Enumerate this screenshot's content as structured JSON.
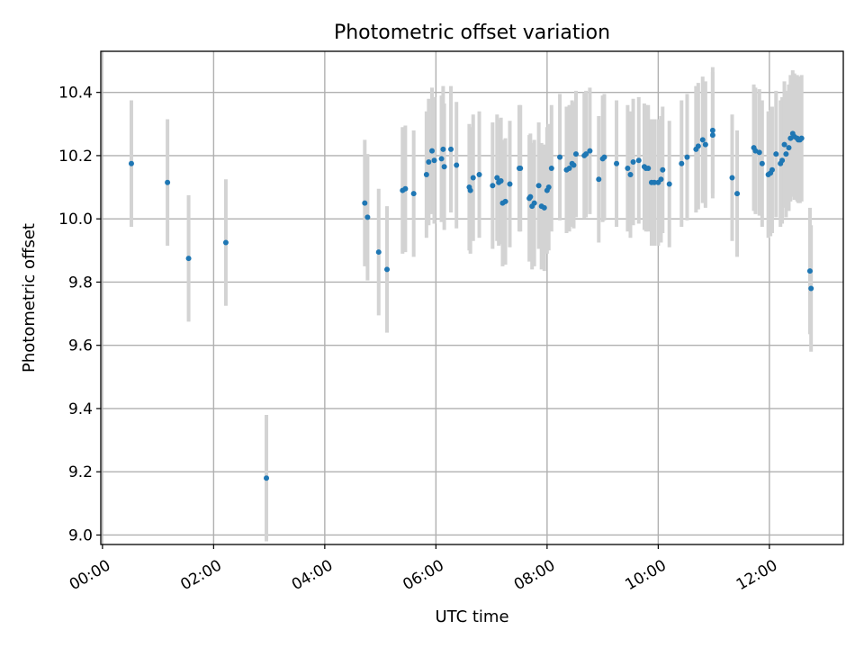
{
  "chart_data": {
    "type": "scatter",
    "title": "Photometric offset variation",
    "xlabel": "UTC time",
    "ylabel": "Photometric offset",
    "xlim": [
      -0.03,
      13.33
    ],
    "ylim": [
      8.97,
      10.53
    ],
    "grid": true,
    "x_ticks": [
      {
        "value": 0,
        "label": "00:00"
      },
      {
        "value": 2,
        "label": "02:00"
      },
      {
        "value": 4,
        "label": "04:00"
      },
      {
        "value": 6,
        "label": "06:00"
      },
      {
        "value": 8,
        "label": "08:00"
      },
      {
        "value": 10,
        "label": "10:00"
      },
      {
        "value": 12,
        "label": "12:00"
      }
    ],
    "y_ticks": [
      {
        "value": 9.0,
        "label": "9.0"
      },
      {
        "value": 9.2,
        "label": "9.2"
      },
      {
        "value": 9.4,
        "label": "9.4"
      },
      {
        "value": 9.6,
        "label": "9.6"
      },
      {
        "value": 9.8,
        "label": "9.8"
      },
      {
        "value": 10.0,
        "label": "10.0"
      },
      {
        "value": 10.2,
        "label": "10.2"
      },
      {
        "value": 10.4,
        "label": "10.4"
      }
    ],
    "colors": {
      "point": "#1f77b4",
      "errorbar": "#d3d3d3"
    },
    "error": 0.2,
    "series": [
      {
        "name": "offset",
        "t": [
          0.52,
          1.17,
          1.55,
          2.22,
          2.95,
          4.72,
          4.77,
          4.97,
          5.12,
          5.4,
          5.45,
          5.6,
          5.83,
          5.87,
          5.93,
          5.97,
          6.1,
          6.13,
          6.15,
          6.27,
          6.37,
          6.6,
          6.62,
          6.67,
          6.78,
          7.02,
          7.1,
          7.13,
          7.17,
          7.2,
          7.25,
          7.33,
          7.5,
          7.52,
          7.68,
          7.7,
          7.73,
          7.77,
          7.85,
          7.9,
          7.95,
          8.0,
          8.03,
          8.08,
          8.23,
          8.35,
          8.4,
          8.45,
          8.48,
          8.52,
          8.67,
          8.7,
          8.77,
          8.93,
          9.0,
          9.03,
          9.25,
          9.45,
          9.5,
          9.55,
          9.65,
          9.75,
          9.78,
          9.82,
          9.88,
          9.93,
          10.0,
          10.05,
          10.08,
          10.2,
          10.42,
          10.52,
          10.68,
          10.72,
          10.8,
          10.85,
          10.98,
          10.98,
          11.33,
          11.42,
          11.72,
          11.75,
          11.82,
          11.87,
          11.98,
          12.02,
          12.05,
          12.12,
          12.2,
          12.23,
          12.27,
          12.3,
          12.35,
          12.38,
          12.42,
          12.45,
          12.5,
          12.52,
          12.55,
          12.58,
          12.73,
          12.75
        ],
        "offset": [
          10.175,
          10.115,
          9.875,
          9.925,
          9.18,
          10.05,
          10.005,
          9.895,
          9.84,
          10.09,
          10.095,
          10.08,
          10.14,
          10.18,
          10.215,
          10.185,
          10.19,
          10.22,
          10.165,
          10.22,
          10.17,
          10.1,
          10.09,
          10.13,
          10.14,
          10.105,
          10.13,
          10.115,
          10.12,
          10.05,
          10.055,
          10.11,
          10.16,
          10.16,
          10.065,
          10.07,
          10.04,
          10.05,
          10.105,
          10.04,
          10.035,
          10.09,
          10.1,
          10.16,
          10.195,
          10.155,
          10.16,
          10.175,
          10.17,
          10.205,
          10.2,
          10.205,
          10.215,
          10.125,
          10.19,
          10.195,
          10.175,
          10.16,
          10.14,
          10.18,
          10.185,
          10.165,
          10.16,
          10.16,
          10.115,
          10.115,
          10.115,
          10.125,
          10.155,
          10.11,
          10.175,
          10.195,
          10.22,
          10.23,
          10.25,
          10.235,
          10.265,
          10.28,
          10.13,
          10.08,
          10.225,
          10.215,
          10.21,
          10.175,
          10.14,
          10.145,
          10.155,
          10.205,
          10.175,
          10.185,
          10.235,
          10.205,
          10.225,
          10.255,
          10.27,
          10.26,
          10.255,
          10.25,
          10.25,
          10.255,
          9.835,
          9.78
        ]
      }
    ]
  }
}
